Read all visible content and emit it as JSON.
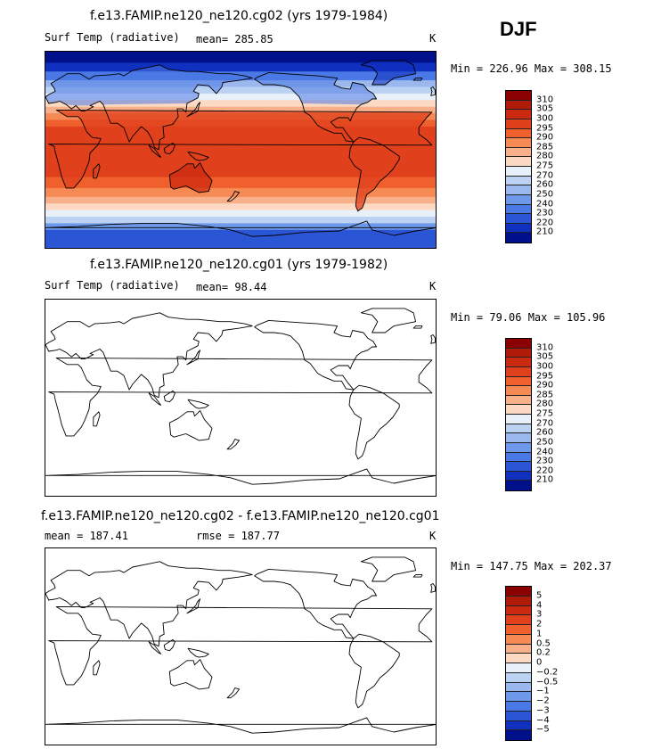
{
  "season": "DJF",
  "panels": [
    {
      "title": "f.e13.FAMIP.ne120_ne120.cg02 (yrs 1979-1984)",
      "left_label": "Surf Temp (radiative)",
      "center_label": "mean= 285.85",
      "units": "K",
      "minmax": "Min = 226.96 Max = 308.15",
      "filled": true
    },
    {
      "title": "f.e13.FAMIP.ne120_ne120.cg01 (yrs 1979-1982)",
      "left_label": "Surf Temp (radiative)",
      "center_label": "mean=  98.44",
      "units": "K",
      "minmax": "Min =  79.06 Max = 105.96",
      "filled": false
    },
    {
      "title": "f.e13.FAMIP.ne120_ne120.cg02 - f.e13.FAMIP.ne120_ne120.cg01",
      "left_label": "mean = 187.41",
      "center_label": "rmse = 187.77",
      "units": "K",
      "minmax": "Min = 147.75 Max = 202.37",
      "filled": false
    }
  ],
  "colorbars": {
    "temperature": {
      "labels": [
        "310",
        "305",
        "300",
        "295",
        "290",
        "285",
        "280",
        "275",
        "270",
        "260",
        "250",
        "240",
        "230",
        "220",
        "210"
      ],
      "colors": [
        "#8b0000",
        "#b01a08",
        "#cc2a10",
        "#e0401c",
        "#f0602c",
        "#f58a55",
        "#f8b08a",
        "#fcd9c2",
        "#e8f0fa",
        "#bcd2f2",
        "#9ab8ee",
        "#6e98ea",
        "#4a78e4",
        "#2a56d6",
        "#1030c0",
        "#00108a"
      ]
    },
    "difference": {
      "labels": [
        "5",
        "4",
        "3",
        "2",
        "1",
        "0.5",
        "0.2",
        "0",
        "−0.2",
        "−0.5",
        "−1",
        "−2",
        "−3",
        "−4",
        "−5"
      ],
      "colors": [
        "#8b0000",
        "#b01a08",
        "#cc2a10",
        "#e0401c",
        "#f0602c",
        "#f58a55",
        "#f8b08a",
        "#fcd9c2",
        "#e8f0fa",
        "#bcd2f2",
        "#9ab8ee",
        "#6e98ea",
        "#4a78e4",
        "#2a56d6",
        "#1030c0",
        "#00108a"
      ]
    }
  }
}
